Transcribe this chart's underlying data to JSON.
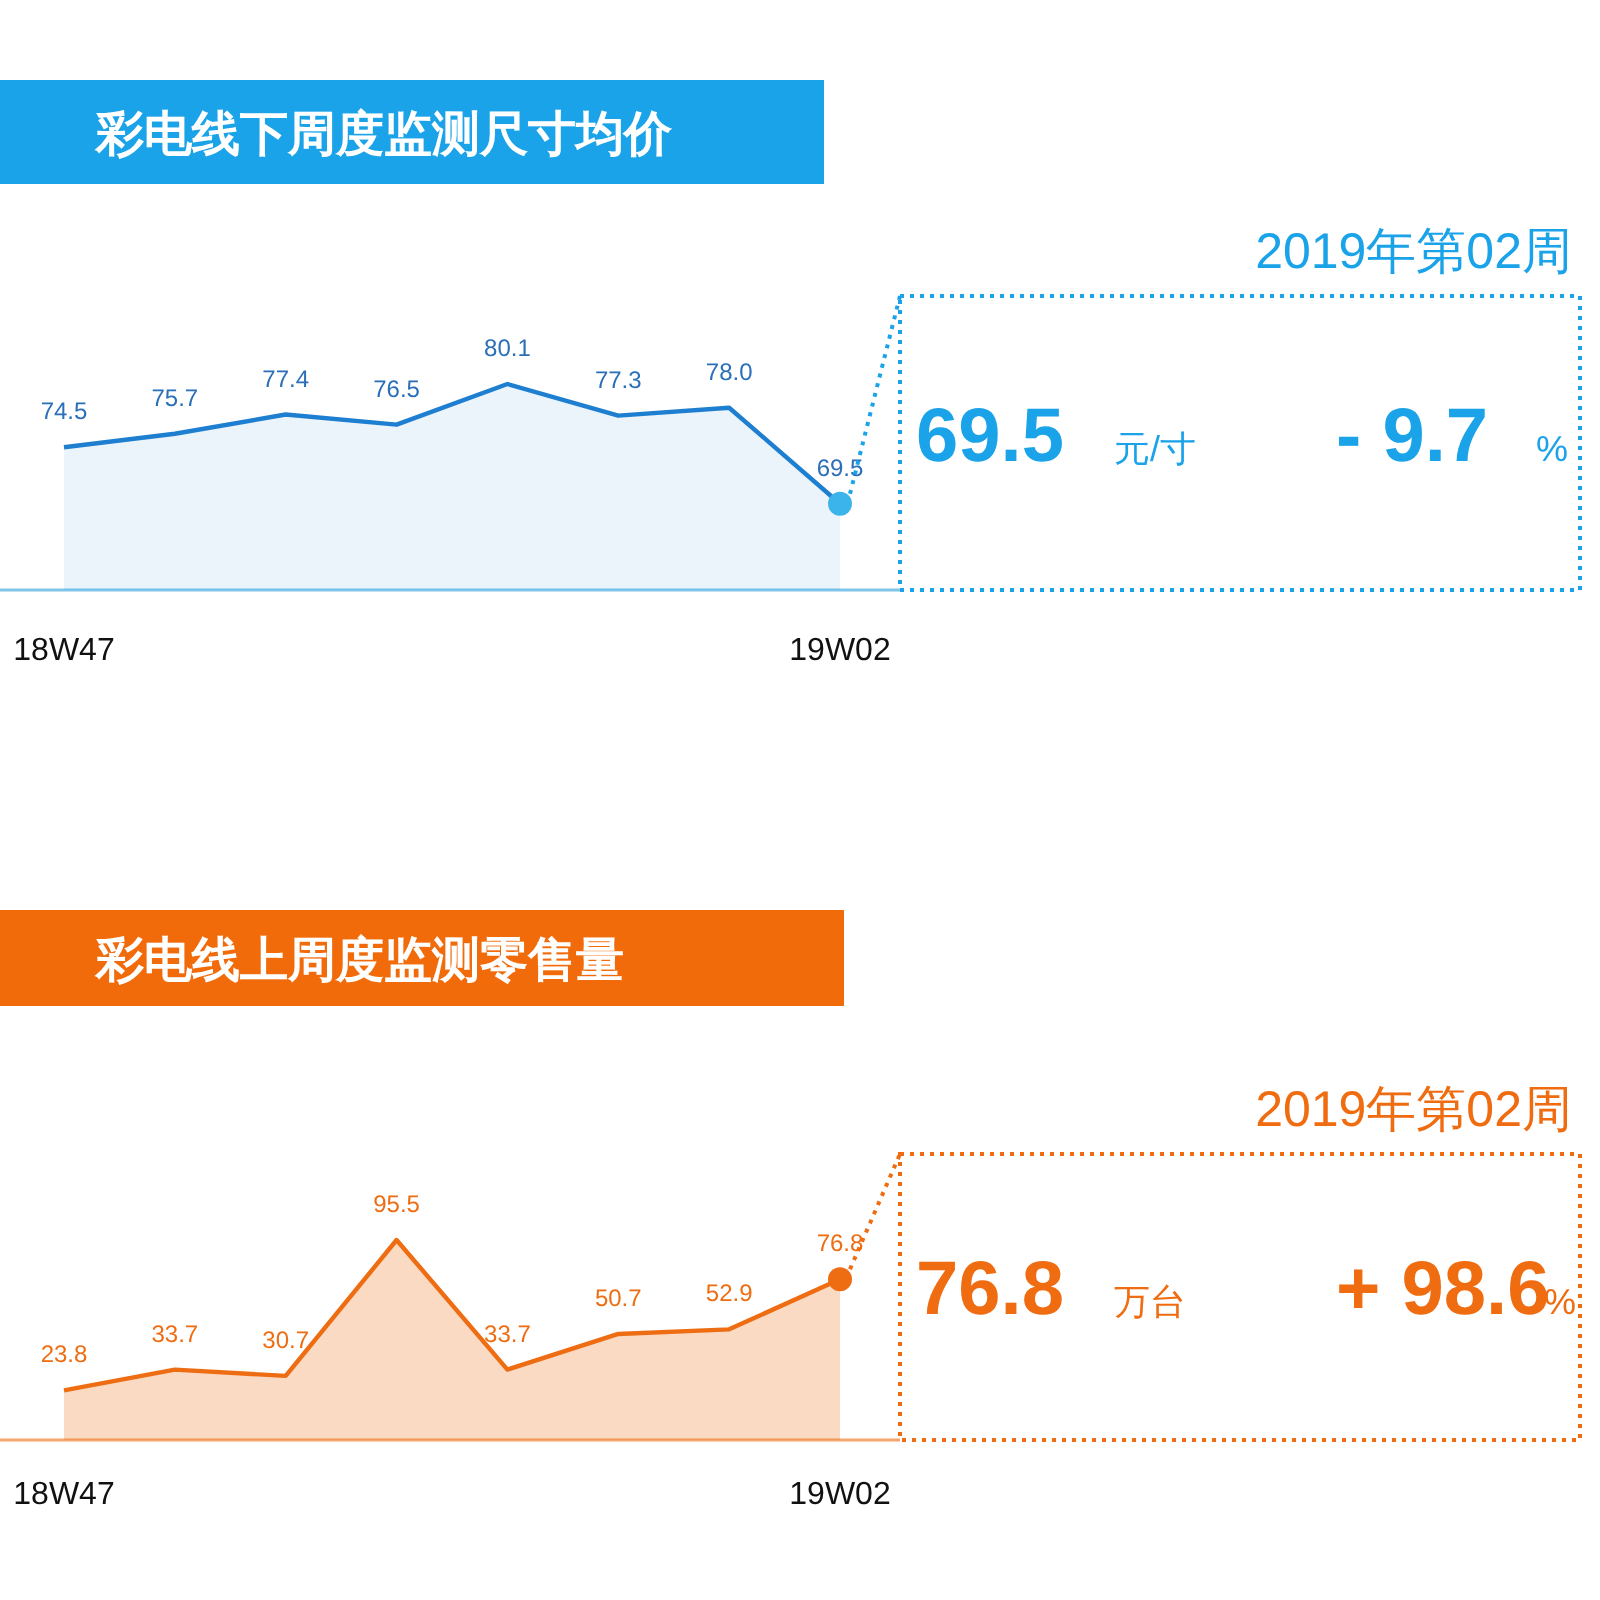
{
  "chart_data": [
    {
      "type": "area",
      "title": "彩电线下周度监测尺寸均价",
      "categories": [
        "18W47",
        null,
        null,
        null,
        null,
        null,
        null,
        "19W02"
      ],
      "series": [
        {
          "color": "#1e7fd0",
          "values": [
            74.5,
            75.7,
            77.4,
            76.5,
            80.1,
            77.3,
            78.0,
            69.5
          ],
          "value_labels": [
            "74.5",
            "75.7",
            "77.4",
            "76.5",
            "80.1",
            "77.3",
            "78.0",
            "69.5"
          ]
        },
        {
          "type": "scatter",
          "x": [
            "19W02"
          ],
          "color": "#3ab4ea",
          "values": [
            69.5
          ]
        }
      ]
    },
    {
      "type": "other",
      "title": "2019年第02周",
      "color": "#1aa3e8",
      "annotations": [
        "69.5",
        "元/寸",
        "- 9.7",
        "%"
      ]
    },
    {
      "type": "area",
      "title": "彩电线上周度监测零售量",
      "categories": [
        "18W47",
        null,
        null,
        null,
        null,
        null,
        null,
        "19W02"
      ],
      "series": [
        {
          "color": "#ee6d12",
          "values": [
            23.8,
            33.7,
            30.7,
            95.5,
            33.7,
            50.7,
            52.9,
            76.8
          ],
          "value_labels": [
            "23.8",
            "33.7",
            "30.7",
            "95.5",
            "33.7",
            "50.7",
            "52.9",
            "76.8"
          ]
        },
        {
          "type": "scatter",
          "x": [
            "19W02"
          ],
          "color": "#ee6d12",
          "values": [
            76.8
          ]
        }
      ]
    },
    {
      "type": "other",
      "title": "2019年第02周",
      "color": "#f06c10",
      "annotations": [
        "76.8",
        "万台",
        "+ 98.6",
        "%"
      ]
    }
  ]
}
